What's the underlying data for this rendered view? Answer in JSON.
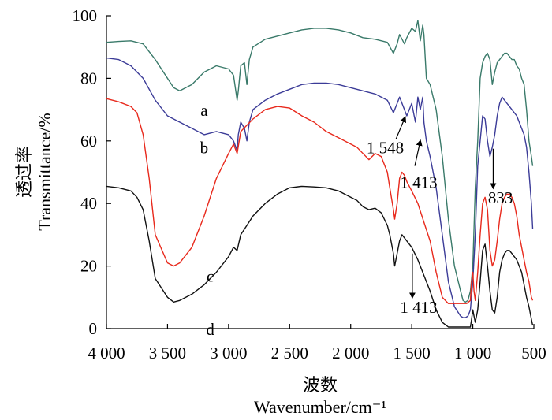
{
  "chart_data": {
    "type": "line",
    "xlabel_cn": "波数",
    "xlabel": "Wavenumber/cm⁻¹",
    "ylabel_cn": "透过率",
    "ylabel": "Transmittance/%",
    "xlim": [
      4000,
      500
    ],
    "ylim": [
      0,
      100
    ],
    "x_ticks": [
      {
        "value": 4000,
        "label": "4 000"
      },
      {
        "value": 3500,
        "label": "3 500"
      },
      {
        "value": 3000,
        "label": "3 000"
      },
      {
        "value": 2500,
        "label": "2 500"
      },
      {
        "value": 2000,
        "label": "2 000"
      },
      {
        "value": 1500,
        "label": "1 500"
      },
      {
        "value": 1000,
        "label": "1 000"
      },
      {
        "value": 500,
        "label": "500"
      }
    ],
    "y_ticks": [
      {
        "value": 0,
        "label": "0"
      },
      {
        "value": 20,
        "label": "20"
      },
      {
        "value": 40,
        "label": "40"
      },
      {
        "value": 60,
        "label": "60"
      },
      {
        "value": 80,
        "label": "80"
      },
      {
        "value": 100,
        "label": "100"
      }
    ],
    "series": [
      {
        "name": "a",
        "color": "#3a7a6a",
        "label_at": [
          3200,
          68
        ],
        "x": [
          4000,
          3900,
          3800,
          3700,
          3600,
          3500,
          3450,
          3400,
          3300,
          3200,
          3100,
          3000,
          2960,
          2930,
          2920,
          2900,
          2870,
          2850,
          2830,
          2800,
          2700,
          2600,
          2500,
          2400,
          2300,
          2200,
          2100,
          2000,
          1900,
          1800,
          1700,
          1650,
          1620,
          1600,
          1560,
          1540,
          1500,
          1470,
          1450,
          1430,
          1410,
          1400,
          1380,
          1350,
          1300,
          1250,
          1200,
          1150,
          1100,
          1080,
          1060,
          1040,
          1020,
          1000,
          980,
          960,
          940,
          920,
          900,
          880,
          860,
          840,
          820,
          800,
          780,
          760,
          740,
          720,
          700,
          680,
          660,
          640,
          620,
          600,
          580,
          560,
          540,
          520,
          510
        ],
        "y": [
          91.5,
          91.8,
          92,
          91,
          86,
          80,
          77,
          76,
          78,
          82,
          84,
          83,
          81,
          73,
          76,
          84,
          85,
          78,
          86,
          90,
          92.5,
          93.5,
          94.5,
          95.5,
          96,
          96,
          95.5,
          94.5,
          93,
          92.5,
          91.5,
          88,
          91,
          94,
          91,
          93,
          96,
          95,
          98.5,
          92,
          97,
          94,
          80,
          78,
          70,
          55,
          35,
          20,
          12,
          9,
          8.5,
          9,
          12,
          20,
          45,
          60,
          80,
          85,
          87,
          88,
          86,
          78,
          82,
          85,
          86,
          87,
          88,
          88,
          87,
          86,
          86,
          84,
          83,
          80,
          78,
          70,
          60,
          55,
          52
        ]
      },
      {
        "name": "b",
        "color": "#3c3c98",
        "label_at": [
          3200,
          56
        ],
        "x": [
          4000,
          3900,
          3800,
          3700,
          3600,
          3500,
          3400,
          3300,
          3200,
          3100,
          3000,
          2960,
          2930,
          2920,
          2900,
          2870,
          2850,
          2830,
          2800,
          2700,
          2600,
          2500,
          2400,
          2300,
          2200,
          2100,
          2000,
          1900,
          1800,
          1700,
          1650,
          1620,
          1600,
          1560,
          1540,
          1500,
          1470,
          1450,
          1430,
          1410,
          1400,
          1380,
          1350,
          1300,
          1250,
          1200,
          1150,
          1100,
          1080,
          1060,
          1040,
          1020,
          1000,
          980,
          960,
          940,
          920,
          900,
          880,
          860,
          840,
          820,
          800,
          780,
          760,
          740,
          720,
          700,
          680,
          660,
          640,
          620,
          600,
          580,
          560,
          540,
          520,
          510
        ],
        "y": [
          86.5,
          86,
          84,
          80,
          73,
          68,
          66,
          64,
          62,
          63,
          62,
          60,
          57,
          62,
          66,
          64,
          60,
          66,
          70,
          73,
          75,
          76.5,
          78,
          78.5,
          78.5,
          78,
          77,
          76,
          75,
          73,
          69,
          72,
          74,
          70,
          68,
          72,
          66,
          74,
          70,
          74,
          66,
          60,
          55,
          45,
          30,
          15,
          7,
          4,
          3.5,
          3.5,
          4,
          6,
          15,
          30,
          52,
          60,
          68,
          67,
          60,
          55,
          58,
          62,
          68,
          72,
          74,
          73,
          72,
          71,
          70,
          69,
          68,
          66,
          64,
          62,
          58,
          50,
          40,
          32
        ]
      },
      {
        "name": "c",
        "color": "#e8291c",
        "label_at": [
          3150,
          15
        ],
        "x": [
          4000,
          3900,
          3800,
          3750,
          3700,
          3650,
          3600,
          3500,
          3450,
          3400,
          3300,
          3200,
          3100,
          3000,
          2960,
          2930,
          2900,
          2850,
          2800,
          2700,
          2600,
          2500,
          2400,
          2300,
          2200,
          2100,
          2000,
          1950,
          1900,
          1850,
          1800,
          1750,
          1700,
          1680,
          1650,
          1640,
          1620,
          1600,
          1580,
          1560,
          1540,
          1500,
          1450,
          1400,
          1350,
          1300,
          1250,
          1200,
          1150,
          1100,
          1050,
          1020,
          1010,
          1000,
          990,
          980,
          960,
          940,
          920,
          900,
          880,
          860,
          840,
          820,
          800,
          780,
          760,
          740,
          720,
          700,
          680,
          660,
          640,
          620,
          600,
          580,
          560,
          540,
          520,
          510
        ],
        "y": [
          73.5,
          72.5,
          71,
          69,
          62,
          48,
          30,
          21,
          20,
          21,
          26,
          36,
          48,
          56,
          59,
          56,
          63,
          65,
          67,
          70,
          71,
          70.5,
          68,
          66,
          63,
          61,
          59,
          58,
          56,
          54,
          56,
          55,
          50,
          45,
          38,
          35,
          40,
          48,
          50,
          49,
          47,
          44,
          40,
          34,
          28,
          18,
          10,
          8,
          8,
          8,
          8,
          9,
          15,
          18,
          12,
          9,
          18,
          30,
          40,
          42,
          38,
          25,
          20,
          22,
          28,
          35,
          40,
          42,
          43,
          43,
          42,
          40,
          36,
          30,
          26,
          22,
          18,
          15,
          10,
          9
        ]
      },
      {
        "name": "d",
        "color": "#111111",
        "label_at": [
          3150,
          -2
        ],
        "x": [
          4000,
          3900,
          3800,
          3750,
          3700,
          3650,
          3600,
          3500,
          3450,
          3400,
          3300,
          3200,
          3100,
          3000,
          2960,
          2930,
          2900,
          2850,
          2800,
          2700,
          2600,
          2500,
          2400,
          2300,
          2200,
          2100,
          2000,
          1950,
          1900,
          1850,
          1800,
          1750,
          1700,
          1680,
          1650,
          1640,
          1620,
          1600,
          1580,
          1560,
          1540,
          1500,
          1450,
          1400,
          1350,
          1300,
          1250,
          1200,
          1150,
          1100,
          1050,
          1020,
          1010,
          1000,
          990,
          980,
          960,
          940,
          920,
          900,
          880,
          860,
          840,
          820,
          800,
          780,
          760,
          740,
          720,
          700,
          680,
          660,
          640,
          620,
          600,
          580,
          560,
          540,
          520,
          510
        ],
        "y": [
          45.5,
          45,
          44,
          42,
          38,
          28,
          16,
          10,
          8.5,
          9,
          11,
          14,
          18,
          23,
          26,
          25,
          30,
          33,
          36,
          40,
          43,
          45,
          45.5,
          45.3,
          45,
          44,
          42,
          41,
          39,
          38,
          38.5,
          37,
          33,
          30,
          24,
          20,
          24,
          28,
          30,
          29,
          28,
          26,
          22,
          17,
          12,
          6,
          2,
          0.5,
          0.5,
          0.5,
          0.5,
          0.5,
          3,
          6,
          4,
          2,
          6,
          15,
          25,
          27,
          20,
          12,
          6,
          5,
          10,
          18,
          22,
          24,
          25,
          25,
          24,
          23,
          22,
          20,
          18,
          14,
          10,
          7,
          3,
          1
        ]
      }
    ],
    "annotations": [
      {
        "text": "1 548",
        "text_at": [
          1870,
          56
        ],
        "arrow_from": [
          1630,
          60.5
        ],
        "arrow_to": [
          1555,
          67.5
        ]
      },
      {
        "text": "1 413",
        "text_at": [
          1595,
          45
        ],
        "arrow_from": [
          1475,
          52
        ],
        "arrow_to": [
          1430,
          60
        ]
      },
      {
        "text": "833",
        "text_at": [
          875,
          40
        ],
        "arrow_from": [
          833,
          57.5
        ],
        "arrow_to": [
          833,
          45
        ]
      },
      {
        "text": "1 413",
        "text_at": [
          1595,
          5
        ],
        "arrow_from": [
          1495,
          24
        ],
        "arrow_to": [
          1495,
          10
        ]
      }
    ]
  }
}
